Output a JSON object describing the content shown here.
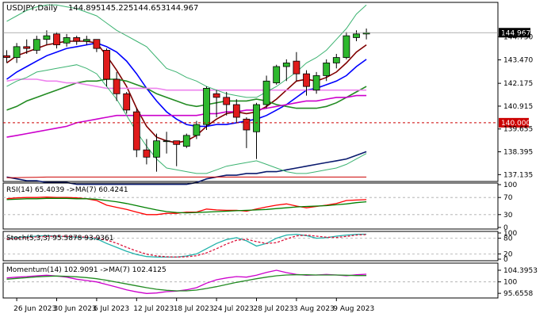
{
  "chart_data": [
    {
      "type": "candlestick",
      "title": "USDJPY,Daily",
      "ohlc_header": [
        "144.895",
        "145.225",
        "144.653",
        "144.967"
      ],
      "last_price_label": "144.967",
      "level_label": "140.000",
      "level_value": 140.0,
      "ylim": [
        136.8,
        146.6
      ],
      "y_ticks": [
        {
          "value": 144.75,
          "label": "144.750"
        },
        {
          "value": 143.47,
          "label": "143.470"
        },
        {
          "value": 142.175,
          "label": "142.175"
        },
        {
          "value": 140.915,
          "label": "140.915"
        },
        {
          "value": 139.655,
          "label": "139.655"
        },
        {
          "value": 138.395,
          "label": "138.395"
        },
        {
          "value": 137.135,
          "label": "137.135"
        }
      ],
      "x_labels": [
        {
          "index": 1,
          "label": "26 Jun 2023"
        },
        {
          "index": 5,
          "label": "30 Jun 2023"
        },
        {
          "index": 9,
          "label": "6 Jul 2023"
        },
        {
          "index": 13,
          "label": "12 Jul 2023"
        },
        {
          "index": 17,
          "label": "18 Jul 2023"
        },
        {
          "index": 21,
          "label": "24 Jul 2023"
        },
        {
          "index": 25,
          "label": "28 Jul 2023"
        },
        {
          "index": 29,
          "label": "3 Aug 2023"
        },
        {
          "index": 33,
          "label": "9 Aug 2023"
        }
      ],
      "candles": [
        {
          "o": 143.7,
          "h": 144.0,
          "l": 143.3,
          "c": 143.6
        },
        {
          "o": 143.6,
          "h": 144.4,
          "l": 143.3,
          "c": 144.2
        },
        {
          "o": 144.2,
          "h": 144.6,
          "l": 143.8,
          "c": 144.1
        },
        {
          "o": 144.0,
          "h": 144.8,
          "l": 143.8,
          "c": 144.6
        },
        {
          "o": 144.6,
          "h": 145.1,
          "l": 144.3,
          "c": 144.8
        },
        {
          "o": 144.9,
          "h": 145.0,
          "l": 144.1,
          "c": 144.3
        },
        {
          "o": 144.4,
          "h": 144.9,
          "l": 144.2,
          "c": 144.7
        },
        {
          "o": 144.7,
          "h": 144.8,
          "l": 144.3,
          "c": 144.5
        },
        {
          "o": 144.5,
          "h": 144.8,
          "l": 144.3,
          "c": 144.6
        },
        {
          "o": 144.6,
          "h": 144.6,
          "l": 143.9,
          "c": 144.1
        },
        {
          "o": 144.0,
          "h": 144.1,
          "l": 142.0,
          "c": 142.4
        },
        {
          "o": 142.4,
          "h": 142.8,
          "l": 141.2,
          "c": 141.6
        },
        {
          "o": 141.6,
          "h": 141.7,
          "l": 140.5,
          "c": 140.7
        },
        {
          "o": 140.6,
          "h": 140.8,
          "l": 138.1,
          "c": 138.5
        },
        {
          "o": 138.5,
          "h": 139.1,
          "l": 137.7,
          "c": 138.1
        },
        {
          "o": 138.1,
          "h": 139.4,
          "l": 137.3,
          "c": 139.0
        },
        {
          "o": 139.0,
          "h": 139.5,
          "l": 138.3,
          "c": 139.0
        },
        {
          "o": 139.0,
          "h": 139.0,
          "l": 137.6,
          "c": 138.8
        },
        {
          "o": 138.7,
          "h": 139.4,
          "l": 138.6,
          "c": 139.3
        },
        {
          "o": 139.3,
          "h": 140.1,
          "l": 139.1,
          "c": 139.9
        },
        {
          "o": 139.9,
          "h": 142.0,
          "l": 139.6,
          "c": 141.9
        },
        {
          "o": 141.6,
          "h": 141.8,
          "l": 140.3,
          "c": 141.4
        },
        {
          "o": 141.4,
          "h": 141.7,
          "l": 140.4,
          "c": 141.0
        },
        {
          "o": 141.0,
          "h": 141.3,
          "l": 140.0,
          "c": 140.3
        },
        {
          "o": 140.2,
          "h": 140.3,
          "l": 138.6,
          "c": 139.6
        },
        {
          "o": 139.5,
          "h": 141.1,
          "l": 138.0,
          "c": 141.0
        },
        {
          "o": 141.0,
          "h": 142.6,
          "l": 140.8,
          "c": 142.3
        },
        {
          "o": 142.2,
          "h": 143.2,
          "l": 142.1,
          "c": 143.1
        },
        {
          "o": 143.1,
          "h": 143.5,
          "l": 142.3,
          "c": 143.3
        },
        {
          "o": 143.4,
          "h": 143.9,
          "l": 142.3,
          "c": 142.7
        },
        {
          "o": 142.7,
          "h": 142.9,
          "l": 141.5,
          "c": 142.0
        },
        {
          "o": 141.8,
          "h": 142.8,
          "l": 141.6,
          "c": 142.6
        },
        {
          "o": 142.6,
          "h": 143.5,
          "l": 142.3,
          "c": 143.3
        },
        {
          "o": 143.3,
          "h": 143.8,
          "l": 143.0,
          "c": 143.6
        },
        {
          "o": 143.6,
          "h": 145.0,
          "l": 143.5,
          "c": 144.8
        },
        {
          "o": 144.7,
          "h": 145.1,
          "l": 144.5,
          "c": 144.9
        },
        {
          "o": 144.9,
          "h": 145.2,
          "l": 144.6,
          "c": 144.97
        }
      ],
      "overlays": [
        {
          "color": "#800000",
          "values": [
            143.3,
            143.7,
            143.9,
            144.1,
            144.3,
            144.4,
            144.5,
            144.5,
            144.5,
            144.4,
            143.7,
            142.9,
            142.0,
            140.8,
            139.8,
            139.2,
            139.0,
            138.9,
            139.0,
            139.3,
            139.8,
            140.2,
            140.5,
            140.6,
            140.5,
            140.6,
            140.9,
            141.3,
            141.8,
            142.3,
            142.4,
            142.3,
            142.5,
            142.8,
            143.3,
            143.9,
            144.3
          ]
        },
        {
          "color": "#0000ff",
          "values": [
            142.4,
            142.8,
            143.1,
            143.4,
            143.7,
            143.9,
            144.1,
            144.2,
            144.3,
            144.4,
            144.2,
            143.9,
            143.4,
            142.7,
            141.9,
            141.2,
            140.6,
            140.2,
            139.9,
            139.8,
            139.8,
            139.9,
            139.9,
            140.0,
            140.1,
            140.2,
            140.4,
            140.7,
            141.0,
            141.4,
            141.8,
            141.9,
            142.1,
            142.3,
            142.6,
            143.1,
            143.5
          ]
        },
        {
          "color": "#228b22",
          "values": [
            140.7,
            140.9,
            141.2,
            141.4,
            141.6,
            141.8,
            142.0,
            142.2,
            142.3,
            142.3,
            142.4,
            142.4,
            142.3,
            142.1,
            141.9,
            141.6,
            141.4,
            141.2,
            141.0,
            140.9,
            141.0,
            141.1,
            141.2,
            141.2,
            141.2,
            141.3,
            141.2,
            141.0,
            140.9,
            140.8,
            140.8,
            140.8,
            140.9,
            141.1,
            141.4,
            141.7,
            142.0
          ]
        },
        {
          "color": "#ee82ee",
          "values": [
            142.3,
            142.4,
            142.4,
            142.4,
            142.3,
            142.3,
            142.2,
            142.2,
            142.1,
            142.0,
            141.9,
            141.9,
            141.9,
            141.9,
            141.9,
            141.9,
            141.8,
            141.8,
            141.8,
            141.8,
            141.8,
            141.8,
            141.8,
            141.8,
            141.8,
            141.8,
            141.8,
            141.8,
            141.8,
            141.8,
            141.8,
            141.8,
            141.8,
            141.8,
            141.8,
            141.8,
            141.8
          ]
        },
        {
          "color": "#cc00cc",
          "values": [
            139.2,
            139.3,
            139.4,
            139.5,
            139.6,
            139.7,
            139.8,
            140.0,
            140.1,
            140.2,
            140.3,
            140.4,
            140.4,
            140.4,
            140.4,
            140.4,
            140.4,
            140.4,
            140.4,
            140.4,
            140.5,
            140.5,
            140.6,
            140.6,
            140.7,
            140.7,
            140.8,
            140.9,
            141.0,
            141.1,
            141.2,
            141.2,
            141.3,
            141.4,
            141.4,
            141.5,
            141.5
          ]
        },
        {
          "color": "#0a1a6e",
          "values": [
            137.0,
            136.9,
            136.8,
            136.8,
            136.7,
            136.7,
            136.7,
            136.6,
            136.6,
            136.6,
            136.6,
            136.6,
            136.6,
            136.6,
            136.6,
            136.6,
            136.6,
            136.6,
            136.6,
            136.7,
            136.9,
            137.0,
            137.1,
            137.1,
            137.2,
            137.2,
            137.3,
            137.3,
            137.4,
            137.5,
            137.6,
            137.7,
            137.8,
            137.9,
            138.0,
            138.2,
            138.4
          ]
        },
        {
          "color": "#cc0000",
          "values": [
            136.96,
            136.97,
            136.98,
            136.99,
            137.0,
            137.0,
            137.0,
            137.0,
            137.0,
            137.0,
            137.0,
            137.0,
            137.0,
            137.0,
            137.0,
            137.0,
            137.0,
            137.0,
            137.0,
            137.0,
            137.0,
            137.0,
            137.0,
            137.0,
            137.0,
            137.0,
            137.0,
            137.0,
            137.0,
            137.0,
            137.0,
            137.0,
            137.0,
            137.0,
            137.0,
            137.0,
            137.0
          ]
        },
        {
          "color": "#3cb371",
          "values": [
            145.6,
            145.9,
            146.2,
            146.4,
            146.5,
            146.5,
            146.4,
            146.3,
            146.1,
            145.9,
            145.5,
            145.1,
            144.8,
            144.5,
            144.2,
            143.6,
            143.0,
            142.8,
            142.5,
            142.3,
            142.0,
            141.8,
            141.6,
            141.5,
            141.4,
            141.4,
            141.7,
            142.0,
            142.4,
            142.8,
            143.3,
            143.6,
            144.0,
            144.6,
            145.2,
            146.0,
            146.5
          ]
        },
        {
          "color": "#3cb371",
          "values": [
            142.0,
            142.3,
            142.5,
            142.8,
            142.9,
            143.0,
            143.1,
            143.2,
            143.0,
            142.7,
            142.0,
            141.3,
            140.4,
            139.5,
            138.7,
            138.0,
            137.5,
            137.4,
            137.3,
            137.2,
            137.2,
            137.4,
            137.6,
            137.7,
            137.8,
            137.9,
            137.7,
            137.5,
            137.3,
            137.2,
            137.2,
            137.3,
            137.4,
            137.5,
            137.7,
            138.0,
            138.3
          ]
        }
      ]
    },
    {
      "type": "line",
      "title": "RSI(14) 65.4039 ->MA(7) 60.4241",
      "ylim": [
        0,
        100
      ],
      "y_ticks": [
        {
          "value": 100,
          "label": "100"
        },
        {
          "value": 70,
          "label": "70"
        },
        {
          "value": 30,
          "label": "30"
        },
        {
          "value": 0,
          "label": "0"
        }
      ],
      "levels": [
        70,
        30
      ],
      "series": [
        {
          "color": "#ff0000",
          "values": [
            67,
            69,
            70,
            70,
            71,
            70,
            70,
            69,
            67,
            63,
            52,
            47,
            42,
            36,
            30,
            30,
            33,
            33,
            36,
            36,
            43,
            41,
            40,
            40,
            38,
            43,
            48,
            52,
            55,
            50,
            46,
            49,
            52,
            56,
            63,
            64,
            65
          ]
        },
        {
          "color": "#008000",
          "values": [
            65,
            66,
            67,
            67,
            68,
            68,
            68,
            67,
            67,
            66,
            63,
            60,
            56,
            51,
            46,
            41,
            37,
            35,
            34,
            35,
            36,
            37,
            38,
            39,
            40,
            41,
            42,
            44,
            46,
            48,
            49,
            50,
            51,
            53,
            55,
            58,
            60
          ]
        }
      ]
    },
    {
      "type": "line",
      "title": "Stoch(5,3,3) 95.5878 93.9361",
      "ylim": [
        0,
        100
      ],
      "y_ticks": [
        {
          "value": 100,
          "label": "100"
        },
        {
          "value": 80,
          "label": "80"
        },
        {
          "value": 20,
          "label": "20"
        },
        {
          "value": 0,
          "label": "0"
        }
      ],
      "levels": [
        80,
        20
      ],
      "series": [
        {
          "color": "#20b2aa",
          "values": [
            80,
            82,
            85,
            88,
            90,
            88,
            86,
            84,
            82,
            78,
            60,
            45,
            30,
            18,
            10,
            8,
            8,
            8,
            12,
            20,
            40,
            60,
            75,
            82,
            70,
            50,
            60,
            80,
            92,
            95,
            90,
            80,
            82,
            88,
            92,
            95,
            95.6
          ]
        },
        {
          "color": "#dc143c",
          "values": [
            78,
            80,
            82,
            85,
            87,
            88,
            87,
            85,
            84,
            81,
            73,
            61,
            45,
            31,
            19,
            12,
            9,
            8,
            9,
            13,
            24,
            40,
            58,
            72,
            76,
            67,
            60,
            63,
            77,
            89,
            92,
            88,
            84,
            83,
            87,
            92,
            93.9
          ]
        }
      ]
    },
    {
      "type": "line",
      "title": "Momentum(14) 102.9091 ->MA(7) 102.4125",
      "ylim": [
        94.5,
        106.5
      ],
      "y_ticks": [
        {
          "value": 104.3953,
          "label": "104.3953"
        },
        {
          "value": 100,
          "label": "100"
        },
        {
          "value": 95.6558,
          "label": "95.6558"
        }
      ],
      "levels": [
        100
      ],
      "series": [
        {
          "color": "#cc00cc",
          "values": [
            101.5,
            101.8,
            102.0,
            102.3,
            102.5,
            102.2,
            101.8,
            101.0,
            100.5,
            100.0,
            99.0,
            98.0,
            97.0,
            96.2,
            95.6,
            95.8,
            96.3,
            96.5,
            97.0,
            97.8,
            99.5,
            100.8,
            101.5,
            102.0,
            101.8,
            102.5,
            103.6,
            104.4,
            103.5,
            102.8,
            102.5,
            102.6,
            102.8,
            102.6,
            102.3,
            102.7,
            102.9
          ]
        },
        {
          "color": "#228b22",
          "values": [
            101.0,
            101.3,
            101.6,
            101.9,
            102.1,
            102.2,
            102.1,
            101.9,
            101.6,
            101.2,
            100.6,
            99.9,
            99.2,
            98.5,
            97.8,
            97.2,
            96.8,
            96.6,
            96.6,
            96.9,
            97.5,
            98.2,
            99.0,
            99.8,
            100.5,
            101.2,
            101.8,
            102.3,
            102.6,
            102.7,
            102.7,
            102.6,
            102.6,
            102.6,
            102.5,
            102.4,
            102.4
          ]
        }
      ]
    }
  ]
}
